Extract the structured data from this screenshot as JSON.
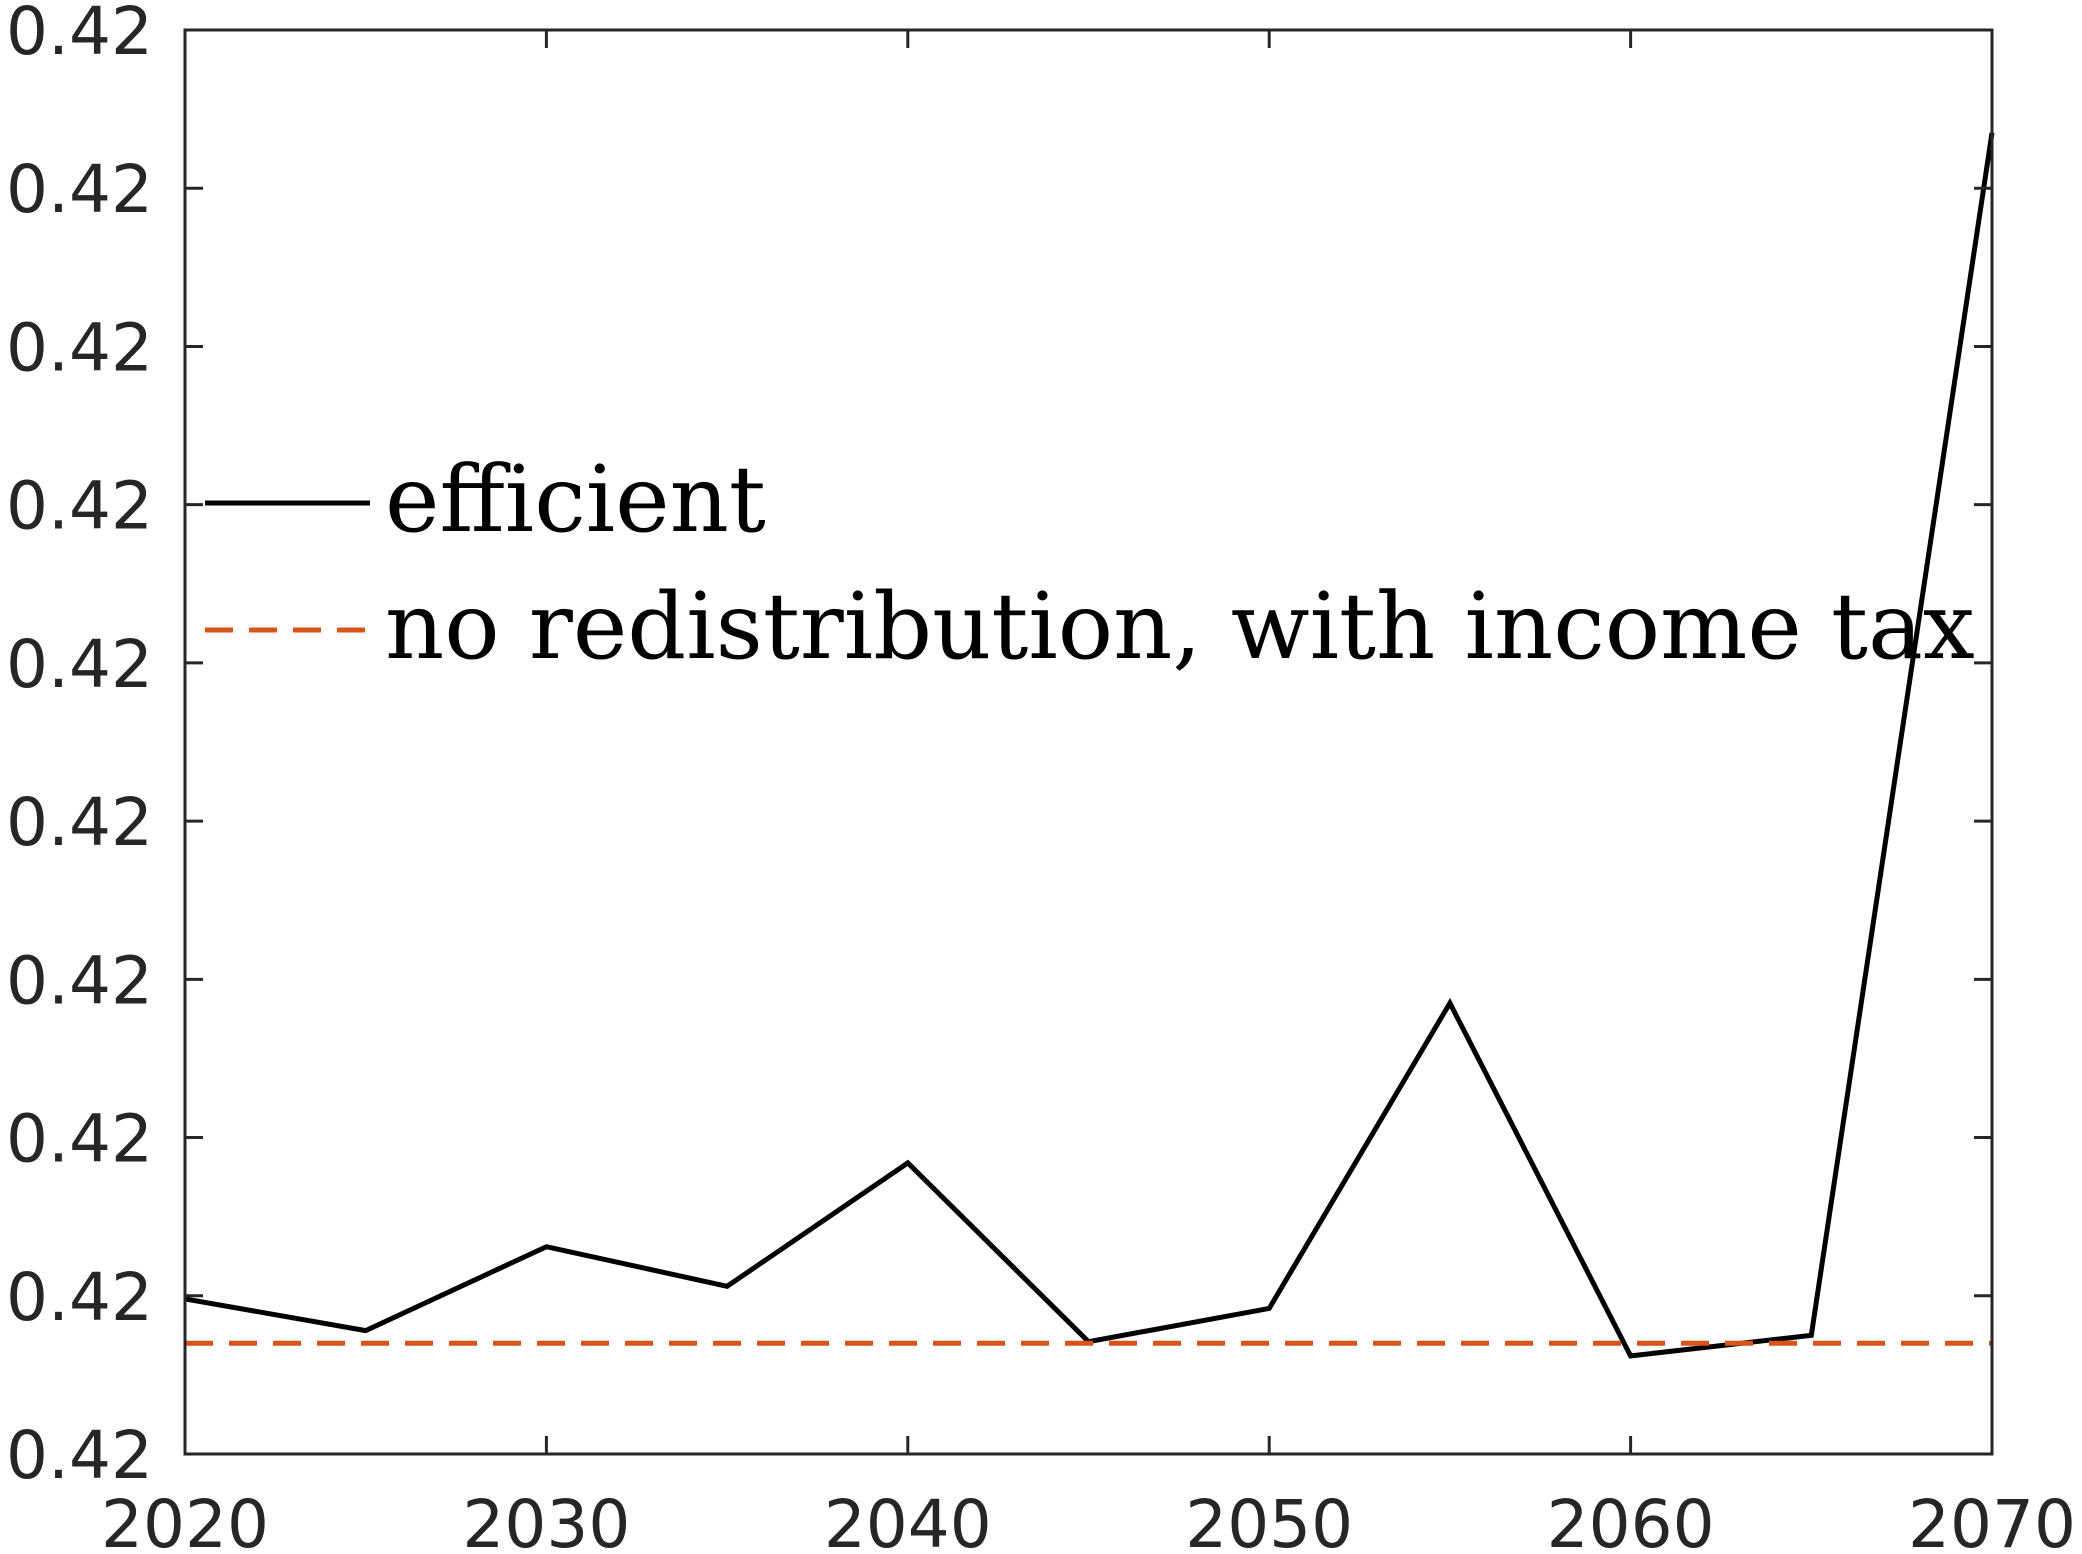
{
  "chart_data": {
    "type": "line",
    "title": "",
    "xlabel": "",
    "ylabel": "",
    "xlim": [
      2020,
      2070
    ],
    "ylim": [
      0,
      9
    ],
    "x_ticks": [
      2020,
      2030,
      2040,
      2050,
      2060,
      2070
    ],
    "x_tick_labels": [
      "2020",
      "2030",
      "2040",
      "2050",
      "2060",
      "2070"
    ],
    "y_ticks": [
      0,
      1,
      2,
      3,
      4,
      5,
      6,
      7,
      8,
      9
    ],
    "y_tick_labels": [
      "0.42",
      "0.42",
      "0.42",
      "0.42",
      "0.42",
      "0.42",
      "0.42",
      "0.42",
      "0.42",
      "0.42"
    ],
    "grid": false,
    "legend_position": "upper-left",
    "series": [
      {
        "name": "efficient",
        "color": "#000000",
        "style": "solid",
        "x": [
          2020,
          2025,
          2030,
          2035,
          2040,
          2045,
          2050,
          2055,
          2060,
          2065,
          2070
        ],
        "y": [
          0.98,
          0.78,
          1.31,
          1.06,
          1.84,
          0.71,
          0.92,
          2.85,
          0.62,
          0.75,
          8.35
        ]
      },
      {
        "name": "no redistribution, with income tax",
        "color": "#D95319",
        "style": "dashed",
        "x": [
          2020,
          2070
        ],
        "y": [
          0.7,
          0.7
        ]
      }
    ]
  }
}
